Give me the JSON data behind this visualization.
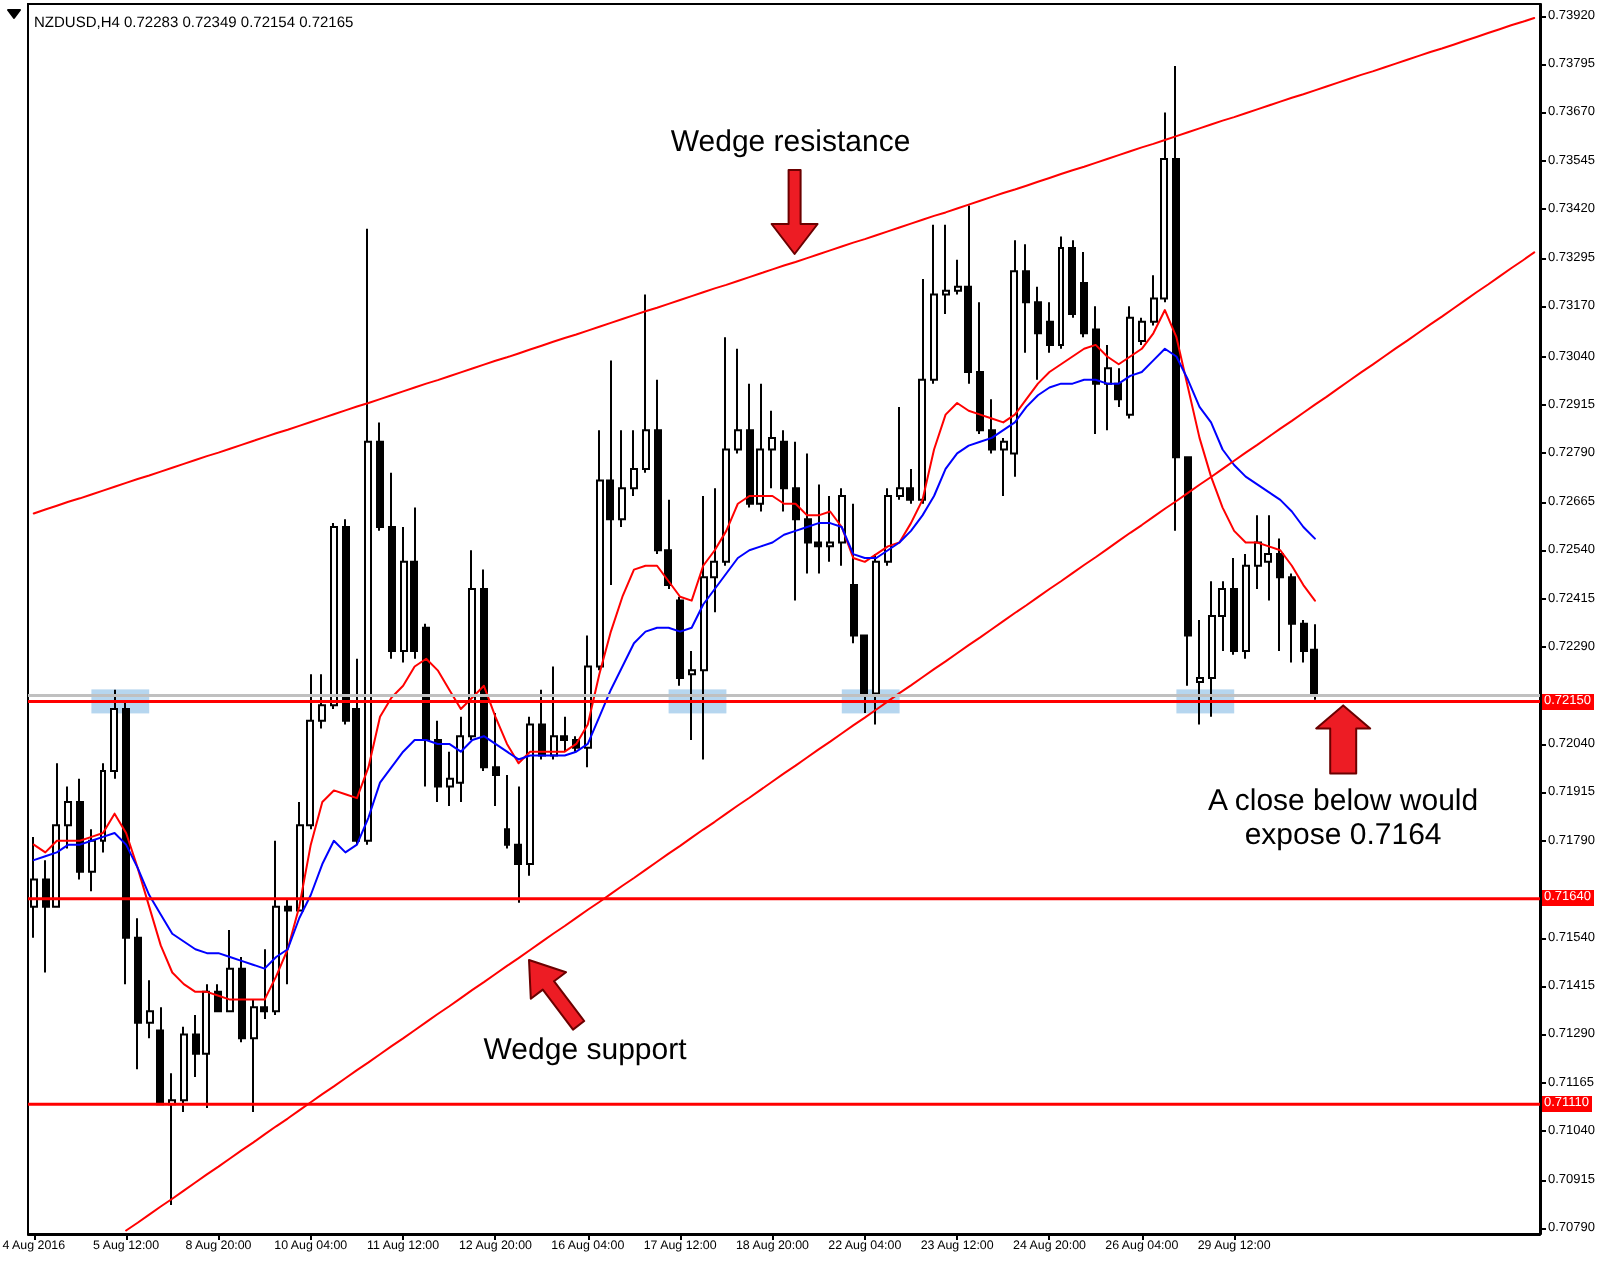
{
  "chart_data": {
    "type": "candlestick",
    "title": "NZDUSD,H4 0.72283 0.72349 0.72154 0.72165",
    "color": "#000000",
    "categories": [
      "4 Aug 2016",
      null,
      null,
      null,
      null,
      null,
      null,
      null,
      "5 Aug 12:00",
      null,
      null,
      null,
      null,
      null,
      null,
      null,
      "8 Aug 20:00",
      null,
      null,
      null,
      null,
      null,
      null,
      null,
      "10 Aug 04:00",
      null,
      null,
      null,
      null,
      null,
      null,
      null,
      "11 Aug 12:00",
      null,
      null,
      null,
      null,
      null,
      null,
      null,
      "12 Aug 20:00",
      null,
      null,
      null,
      null,
      null,
      null,
      null,
      "16 Aug 04:00",
      null,
      null,
      null,
      null,
      null,
      null,
      null,
      "17 Aug 12:00",
      null,
      null,
      null,
      null,
      null,
      null,
      null,
      "18 Aug 20:00",
      null,
      null,
      null,
      null,
      null,
      null,
      null,
      "22 Aug 04:00",
      null,
      null,
      null,
      null,
      null,
      null,
      null,
      "23 Aug 12:00",
      null,
      null,
      null,
      null,
      null,
      null,
      null,
      "24 Aug 20:00",
      null,
      null,
      null,
      null,
      null,
      null,
      null,
      "26 Aug 04:00",
      null,
      null,
      null,
      null,
      null,
      null,
      null,
      "29 Aug 12:00",
      null,
      null,
      null,
      null,
      null,
      null,
      null,
      null,
      null,
      null,
      null,
      null,
      null,
      null,
      null,
      null,
      null,
      null,
      null,
      null,
      null,
      null,
      null,
      null,
      null,
      null
    ],
    "ohlc": [
      [
        0.7162,
        0.718,
        0.7154,
        0.7169
      ],
      [
        0.7169,
        0.7174,
        0.7145,
        0.7162
      ],
      [
        0.7162,
        0.7199,
        0.7162,
        0.7183
      ],
      [
        0.7183,
        0.7193,
        0.7177,
        0.7189
      ],
      [
        0.7189,
        0.7195,
        0.7169,
        0.7171
      ],
      [
        0.7171,
        0.7182,
        0.7166,
        0.7179
      ],
      [
        0.7179,
        0.7199,
        0.7176,
        0.7197
      ],
      [
        0.7197,
        0.7218,
        0.7195,
        0.7213
      ],
      [
        0.7213,
        0.7215,
        0.7142,
        0.7154
      ],
      [
        0.7154,
        0.7159,
        0.712,
        0.7132
      ],
      [
        0.7132,
        0.7143,
        0.7128,
        0.7135
      ],
      [
        0.713,
        0.7136,
        0.7111,
        0.7111
      ],
      [
        0.7111,
        0.7119,
        0.7085,
        0.7112
      ],
      [
        0.7112,
        0.7131,
        0.7109,
        0.7129
      ],
      [
        0.7129,
        0.7134,
        0.7118,
        0.7124
      ],
      [
        0.7124,
        0.7142,
        0.711,
        0.714
      ],
      [
        0.714,
        0.7142,
        0.7135,
        0.7135
      ],
      [
        0.7135,
        0.7156,
        0.7135,
        0.7146
      ],
      [
        0.7146,
        0.7149,
        0.7127,
        0.7128
      ],
      [
        0.7128,
        0.7138,
        0.7109,
        0.7136
      ],
      [
        0.7136,
        0.7151,
        0.7133,
        0.7135
      ],
      [
        0.7135,
        0.7179,
        0.7134,
        0.7162
      ],
      [
        0.7162,
        0.7164,
        0.7142,
        0.7161
      ],
      [
        0.7161,
        0.7189,
        0.7161,
        0.7183
      ],
      [
        0.7183,
        0.7222,
        0.7182,
        0.721
      ],
      [
        0.721,
        0.7222,
        0.7208,
        0.7214
      ],
      [
        0.7214,
        0.7261,
        0.7213,
        0.726
      ],
      [
        0.726,
        0.7262,
        0.7209,
        0.721
      ],
      [
        0.7213,
        0.7226,
        0.7178,
        0.7179
      ],
      [
        0.7179,
        0.7337,
        0.7178,
        0.7282
      ],
      [
        0.7282,
        0.7287,
        0.7259,
        0.726
      ],
      [
        0.726,
        0.7274,
        0.7226,
        0.7228
      ],
      [
        0.7228,
        0.726,
        0.7225,
        0.7251
      ],
      [
        0.7251,
        0.7265,
        0.7226,
        0.7228
      ],
      [
        0.7234,
        0.7235,
        0.7193,
        0.7205
      ],
      [
        0.7205,
        0.721,
        0.7189,
        0.7193
      ],
      [
        0.7193,
        0.7202,
        0.7188,
        0.7195
      ],
      [
        0.7194,
        0.7211,
        0.7189,
        0.7206
      ],
      [
        0.7206,
        0.7254,
        0.7205,
        0.7244
      ],
      [
        0.7244,
        0.7249,
        0.7197,
        0.7198
      ],
      [
        0.7198,
        0.7212,
        0.7188,
        0.7196
      ],
      [
        0.7182,
        0.7196,
        0.7177,
        0.7178
      ],
      [
        0.7178,
        0.7193,
        0.7163,
        0.7173
      ],
      [
        0.7173,
        0.7211,
        0.717,
        0.7209
      ],
      [
        0.7209,
        0.7218,
        0.72,
        0.7201
      ],
      [
        0.7201,
        0.7224,
        0.72,
        0.7206
      ],
      [
        0.7206,
        0.7211,
        0.7202,
        0.7205
      ],
      [
        0.7205,
        0.7206,
        0.7202,
        0.7203
      ],
      [
        0.7203,
        0.7232,
        0.7198,
        0.7224
      ],
      [
        0.7224,
        0.7285,
        0.7223,
        0.7272
      ],
      [
        0.7272,
        0.7303,
        0.7245,
        0.7262
      ],
      [
        0.7262,
        0.7285,
        0.726,
        0.727
      ],
      [
        0.727,
        0.7285,
        0.7268,
        0.7275
      ],
      [
        0.7275,
        0.732,
        0.7274,
        0.7285
      ],
      [
        0.7285,
        0.7298,
        0.7253,
        0.7254
      ],
      [
        0.7254,
        0.7267,
        0.7244,
        0.7245
      ],
      [
        0.7241,
        0.7242,
        0.7219,
        0.7221
      ],
      [
        0.7222,
        0.7228,
        0.7205,
        0.7223
      ],
      [
        0.7223,
        0.7268,
        0.72,
        0.7247
      ],
      [
        0.7247,
        0.727,
        0.7238,
        0.7251
      ],
      [
        0.7251,
        0.7309,
        0.725,
        0.728
      ],
      [
        0.728,
        0.7306,
        0.7279,
        0.7285
      ],
      [
        0.7285,
        0.7297,
        0.7265,
        0.7266
      ],
      [
        0.7266,
        0.7297,
        0.7264,
        0.728
      ],
      [
        0.728,
        0.729,
        0.727,
        0.7283
      ],
      [
        0.7282,
        0.7285,
        0.7264,
        0.727
      ],
      [
        0.727,
        0.7282,
        0.7241,
        0.7262
      ],
      [
        0.7262,
        0.7279,
        0.7248,
        0.7256
      ],
      [
        0.7256,
        0.7271,
        0.7248,
        0.7255
      ],
      [
        0.7255,
        0.7268,
        0.7251,
        0.7256
      ],
      [
        0.7256,
        0.727,
        0.725,
        0.7268
      ],
      [
        0.7245,
        0.7266,
        0.723,
        0.7232
      ],
      [
        0.7232,
        0.7232,
        0.7212,
        0.7217
      ],
      [
        0.7217,
        0.7253,
        0.7209,
        0.7251
      ],
      [
        0.7251,
        0.727,
        0.725,
        0.7268
      ],
      [
        0.7268,
        0.7291,
        0.7267,
        0.727
      ],
      [
        0.727,
        0.7275,
        0.7266,
        0.7267
      ],
      [
        0.7267,
        0.7324,
        0.7266,
        0.7298
      ],
      [
        0.7298,
        0.7338,
        0.7297,
        0.732
      ],
      [
        0.732,
        0.7338,
        0.7315,
        0.7321
      ],
      [
        0.7321,
        0.7329,
        0.732,
        0.7322
      ],
      [
        0.7322,
        0.7343,
        0.7297,
        0.73
      ],
      [
        0.73,
        0.7318,
        0.7284,
        0.7285
      ],
      [
        0.7285,
        0.7293,
        0.7279,
        0.728
      ],
      [
        0.728,
        0.7283,
        0.7268,
        0.7282
      ],
      [
        0.7279,
        0.7334,
        0.7273,
        0.7326
      ],
      [
        0.7326,
        0.7333,
        0.7305,
        0.7318
      ],
      [
        0.7318,
        0.7322,
        0.7298,
        0.731
      ],
      [
        0.7313,
        0.7318,
        0.7305,
        0.7307
      ],
      [
        0.7307,
        0.7335,
        0.7306,
        0.7332
      ],
      [
        0.7332,
        0.7334,
        0.7314,
        0.7315
      ],
      [
        0.7323,
        0.7331,
        0.7309,
        0.731
      ],
      [
        0.7311,
        0.7317,
        0.7284,
        0.7297
      ],
      [
        0.7297,
        0.7307,
        0.7285,
        0.7301
      ],
      [
        0.7297,
        0.7301,
        0.7291,
        0.7293
      ],
      [
        0.7289,
        0.7317,
        0.7288,
        0.7314
      ],
      [
        0.7308,
        0.7314,
        0.7307,
        0.7313
      ],
      [
        0.7313,
        0.7325,
        0.7312,
        0.7319
      ],
      [
        0.7319,
        0.7367,
        0.7318,
        0.7355
      ],
      [
        0.7355,
        0.7379,
        0.7259,
        0.7278
      ],
      [
        0.7278,
        0.7278,
        0.7219,
        0.7232
      ],
      [
        0.722,
        0.7236,
        0.7209,
        0.7221
      ],
      [
        0.7221,
        0.7246,
        0.7211,
        0.7237
      ],
      [
        0.7237,
        0.7246,
        0.7228,
        0.7244
      ],
      [
        0.7244,
        0.7252,
        0.7227,
        0.7228
      ],
      [
        0.7228,
        0.7253,
        0.7226,
        0.725
      ],
      [
        0.725,
        0.7263,
        0.7244,
        0.7256
      ],
      [
        0.7251,
        0.7263,
        0.7241,
        0.7253
      ],
      [
        0.7253,
        0.7257,
        0.7228,
        0.7247
      ],
      [
        0.7247,
        0.7248,
        0.7225,
        0.7235
      ],
      [
        0.7235,
        0.7236,
        0.7225,
        0.7228
      ],
      [
        0.72283,
        0.72349,
        0.72154,
        0.72165
      ],
      null,
      null,
      null,
      null,
      null,
      null,
      null,
      null,
      null,
      null,
      null,
      null,
      null,
      null,
      null,
      null,
      null,
      null,
      null
    ],
    "series": [
      {
        "type": "line",
        "color": "#ff0000",
        "values": [
          0.7178,
          0.7176,
          0.7179,
          0.7179,
          0.7179,
          0.718,
          0.7181,
          0.7186,
          0.7181,
          0.7172,
          0.7162,
          0.7152,
          0.7145,
          0.7142,
          0.714,
          0.714,
          0.7139,
          0.7138,
          0.7138,
          0.7138,
          0.7138,
          0.7144,
          0.7151,
          0.7162,
          0.7178,
          0.7189,
          0.7192,
          0.7191,
          0.719,
          0.7198,
          0.7211,
          0.7216,
          0.7219,
          0.7224,
          0.7226,
          0.7223,
          0.7218,
          0.7213,
          0.7216,
          0.7219,
          0.7211,
          0.7204,
          0.7199,
          0.7202,
          0.7202,
          0.7202,
          0.7202,
          0.7204,
          0.7209,
          0.7222,
          0.7233,
          0.7242,
          0.7249,
          0.725,
          0.725,
          0.7246,
          0.7242,
          0.7241,
          0.725,
          0.7254,
          0.7259,
          0.7266,
          0.7268,
          0.7268,
          0.7268,
          0.7266,
          0.7266,
          0.7263,
          0.7263,
          0.7264,
          0.726,
          0.7252,
          0.7251,
          0.7253,
          0.7255,
          0.7256,
          0.7261,
          0.7267,
          0.728,
          0.7289,
          0.7292,
          0.729,
          0.7289,
          0.7288,
          0.7287,
          0.7289,
          0.7293,
          0.7297,
          0.73,
          0.7302,
          0.7304,
          0.7306,
          0.7307,
          0.7304,
          0.7302,
          0.7304,
          0.7306,
          0.731,
          0.7316,
          0.7309,
          0.7296,
          0.7283,
          0.7273,
          0.7265,
          0.7259,
          0.7256,
          0.7256,
          0.7255,
          0.7254,
          0.725,
          0.7245,
          0.7241,
          null,
          null,
          null,
          null,
          null,
          null,
          null,
          null,
          null,
          null,
          null,
          null,
          null,
          null,
          null,
          null,
          null,
          null,
          null
        ]
      },
      {
        "type": "line",
        "color": "#0000ff",
        "values": [
          0.7174,
          0.7175,
          0.7176,
          0.7178,
          0.7178,
          0.7179,
          0.718,
          0.7181,
          0.7178,
          0.7172,
          0.7165,
          0.716,
          0.7155,
          0.7153,
          0.7151,
          0.715,
          0.715,
          0.7149,
          0.7148,
          0.7147,
          0.7146,
          0.7149,
          0.7151,
          0.7159,
          0.7165,
          0.7173,
          0.7179,
          0.7176,
          0.7178,
          0.7185,
          0.7194,
          0.7198,
          0.7202,
          0.7205,
          0.7205,
          0.7204,
          0.7204,
          0.7202,
          0.7205,
          0.7206,
          0.7204,
          0.7202,
          0.72,
          0.7201,
          0.7201,
          0.7201,
          0.7201,
          0.7202,
          0.7204,
          0.7211,
          0.7218,
          0.7224,
          0.723,
          0.7233,
          0.7234,
          0.7234,
          0.7233,
          0.7234,
          0.724,
          0.7244,
          0.7248,
          0.7252,
          0.7254,
          0.7255,
          0.7256,
          0.7258,
          0.7259,
          0.726,
          0.7261,
          0.7261,
          0.726,
          0.7253,
          0.7252,
          0.7252,
          0.7254,
          0.7256,
          0.7259,
          0.7263,
          0.7268,
          0.7275,
          0.7279,
          0.7281,
          0.7282,
          0.7283,
          0.7285,
          0.7287,
          0.7291,
          0.7294,
          0.7296,
          0.7297,
          0.7297,
          0.7298,
          0.7298,
          0.7297,
          0.7297,
          0.7299,
          0.73,
          0.7303,
          0.7306,
          0.7304,
          0.7298,
          0.7291,
          0.7287,
          0.728,
          0.7276,
          0.7273,
          0.7271,
          0.7269,
          0.7267,
          0.7264,
          0.726,
          0.7257,
          null,
          null,
          null,
          null,
          null,
          null,
          null,
          null,
          null,
          null,
          null,
          null,
          null,
          null,
          null,
          null,
          null,
          null,
          null
        ]
      },
      {
        "type": "line",
        "color": "#ff0000",
        "values": [
          0.72635,
          0.72645,
          0.72655,
          0.72665,
          0.72674,
          0.72684,
          0.72694,
          0.72704,
          0.72714,
          0.72724,
          0.72733,
          0.72743,
          0.72753,
          0.72763,
          0.72773,
          0.72783,
          0.72792,
          0.72802,
          0.72812,
          0.72822,
          0.72832,
          0.72842,
          0.72851,
          0.72861,
          0.72871,
          0.72881,
          0.72891,
          0.72901,
          0.72911,
          0.7292,
          0.7293,
          0.7294,
          0.7295,
          0.7296,
          0.7297,
          0.72979,
          0.72989,
          0.72999,
          0.73009,
          0.73019,
          0.73029,
          0.73038,
          0.73048,
          0.73058,
          0.73068,
          0.73078,
          0.73088,
          0.73097,
          0.73107,
          0.73117,
          0.73127,
          0.73137,
          0.73147,
          0.73157,
          0.73166,
          0.73176,
          0.73186,
          0.73196,
          0.73206,
          0.73216,
          0.73225,
          0.73235,
          0.73245,
          0.73255,
          0.73265,
          0.73275,
          0.73284,
          0.73294,
          0.73304,
          0.73314,
          0.73324,
          0.73334,
          0.73343,
          0.73353,
          0.73363,
          0.73373,
          0.73383,
          0.73393,
          0.73403,
          0.73412,
          0.73422,
          0.73432,
          0.73442,
          0.73452,
          0.73462,
          0.73471,
          0.73481,
          0.73491,
          0.73501,
          0.73511,
          0.73521,
          0.7353,
          0.7354,
          0.7355,
          0.7356,
          0.7357,
          0.7358,
          0.73589,
          0.73599,
          0.73609,
          0.73619,
          0.73629,
          0.73639,
          0.73649,
          0.73658,
          0.73668,
          0.73678,
          0.73688,
          0.73698,
          0.73708,
          0.73717,
          0.73727,
          0.73737,
          0.73747,
          0.73757,
          0.73767,
          0.73776,
          0.73786,
          0.73796,
          0.73806,
          0.73816,
          0.73826,
          0.73835,
          0.73845,
          0.73855,
          0.73865,
          0.73875,
          0.73885,
          0.73895,
          0.73904,
          0.73914
        ]
      },
      {
        "type": "line",
        "color": "#ff0000",
        "values": [
          null,
          null,
          null,
          null,
          null,
          null,
          null,
          null,
          0.70784,
          0.70804,
          0.70825,
          0.70846,
          0.70866,
          0.70887,
          0.70908,
          0.70929,
          0.70949,
          0.7097,
          0.70991,
          0.71011,
          0.71032,
          0.71053,
          0.71073,
          0.71094,
          0.71115,
          0.71136,
          0.71156,
          0.71177,
          0.71198,
          0.71218,
          0.71239,
          0.7126,
          0.7128,
          0.71301,
          0.71322,
          0.71343,
          0.71363,
          0.71384,
          0.71405,
          0.71425,
          0.71446,
          0.71467,
          0.71487,
          0.71508,
          0.71529,
          0.7155,
          0.7157,
          0.71591,
          0.71612,
          0.71632,
          0.71653,
          0.71674,
          0.71694,
          0.71715,
          0.71736,
          0.71757,
          0.71777,
          0.71798,
          0.71819,
          0.71839,
          0.7186,
          0.71881,
          0.71901,
          0.71922,
          0.71943,
          0.71964,
          0.71984,
          0.72005,
          0.72026,
          0.72046,
          0.72067,
          0.72088,
          0.72108,
          0.72129,
          0.7215,
          0.72171,
          0.72191,
          0.72212,
          0.72233,
          0.72253,
          0.72274,
          0.72295,
          0.72315,
          0.72336,
          0.72357,
          0.72378,
          0.72398,
          0.72419,
          0.7244,
          0.7246,
          0.72481,
          0.72502,
          0.72522,
          0.72543,
          0.72564,
          0.72585,
          0.72605,
          0.72626,
          0.72647,
          0.72667,
          0.72688,
          0.72709,
          0.72729,
          0.7275,
          0.72771,
          0.72792,
          0.72812,
          0.72833,
          0.72854,
          0.72874,
          0.72895,
          0.72916,
          0.72936,
          0.72957,
          0.72978,
          0.72999,
          0.73019,
          0.7304,
          0.73061,
          0.73081,
          0.73102,
          0.73123,
          0.73143,
          0.73164,
          0.73185,
          0.73206,
          0.73226,
          0.73247,
          0.73268,
          0.73288,
          0.73309
        ]
      }
    ],
    "ylim": [
      0.70775,
      0.7395
    ],
    "yticks": [
      {
        "value": 0.7392,
        "label": "0.73920"
      },
      0.73795,
      {
        "value": 0.7367,
        "label": "0.73670"
      },
      0.73545,
      {
        "value": 0.7342,
        "label": "0.73420"
      },
      0.73295,
      {
        "value": 0.7317,
        "label": "0.73170"
      },
      {
        "value": 0.7304,
        "label": "0.73040"
      },
      0.72915,
      {
        "value": 0.7279,
        "label": "0.72790"
      },
      0.72665,
      {
        "value": 0.7254,
        "label": "0.72540"
      },
      0.72415,
      {
        "value": 0.7229,
        "label": "0.72290"
      },
      {
        "value": 0.7204,
        "label": "0.72040"
      },
      0.71915,
      {
        "value": 0.7179,
        "label": "0.71790"
      },
      {
        "value": 0.7154,
        "label": "0.71540"
      },
      0.71415,
      {
        "value": 0.7129,
        "label": "0.71290"
      },
      0.71165,
      {
        "value": 0.7104,
        "label": "0.71040"
      },
      0.70915,
      {
        "value": 0.7079,
        "label": "0.70790"
      }
    ],
    "ref_lines": [
      {
        "axis": "y",
        "value": 0.7215,
        "label": "0.72150",
        "color": "#ff0000"
      },
      {
        "axis": "y",
        "value": 0.7164,
        "label": "0.71640",
        "color": "#ff0000"
      },
      {
        "axis": "y",
        "value": 0.7111,
        "label": "0.71110",
        "color": "#ff0000"
      },
      {
        "axis": "y",
        "value": 0.72165,
        "color": "#c0c0c0"
      }
    ],
    "annotations": [
      "Wedge resistance",
      "Wedge support",
      "A close below would expose 0.7164"
    ]
  }
}
